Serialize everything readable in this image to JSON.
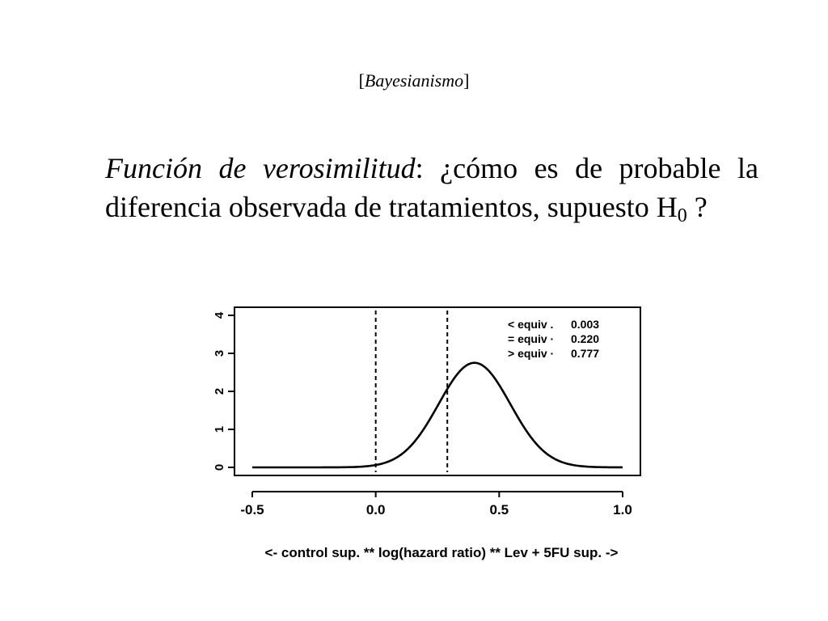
{
  "header": {
    "open_bracket": "[",
    "text": "Bayesianismo",
    "close_bracket": "]"
  },
  "body": {
    "italic_part": "Función de verosimilitud",
    "after_italic": ":  ¿cómo es de probable la diferencia observada de tratamientos, supuesto H",
    "subscript": "0",
    "ending": " ?"
  },
  "chart_data": {
    "type": "line",
    "xlabel": "<- control sup.  ** log(hazard ratio)  **  Lev + 5FU sup. ->",
    "ylabel": "",
    "xlim": [
      -0.5,
      1.0
    ],
    "ylim": [
      0,
      4
    ],
    "x_ticks": [
      "-0.5",
      "0.0",
      "0.5",
      "1.0"
    ],
    "x_tick_values": [
      -0.5,
      0.0,
      0.5,
      1.0
    ],
    "y_ticks": [
      "0",
      "1",
      "2",
      "3",
      "4"
    ],
    "y_tick_values": [
      0,
      1,
      2,
      3,
      4
    ],
    "grid": false,
    "curve": {
      "description_kind": "normal density",
      "mean": 0.4,
      "sd": 0.145
    },
    "vertical_lines": [
      {
        "x": 0.0,
        "style": "dashed"
      },
      {
        "x": 0.29,
        "style": "dashed"
      }
    ],
    "annotations": {
      "position": "top-right",
      "rows": [
        {
          "label": "< equiv .",
          "value": "0.003"
        },
        {
          "label": "= equiv ·",
          "value": "0.220"
        },
        {
          "label": "> equiv ·",
          "value": "0.777"
        }
      ]
    }
  }
}
